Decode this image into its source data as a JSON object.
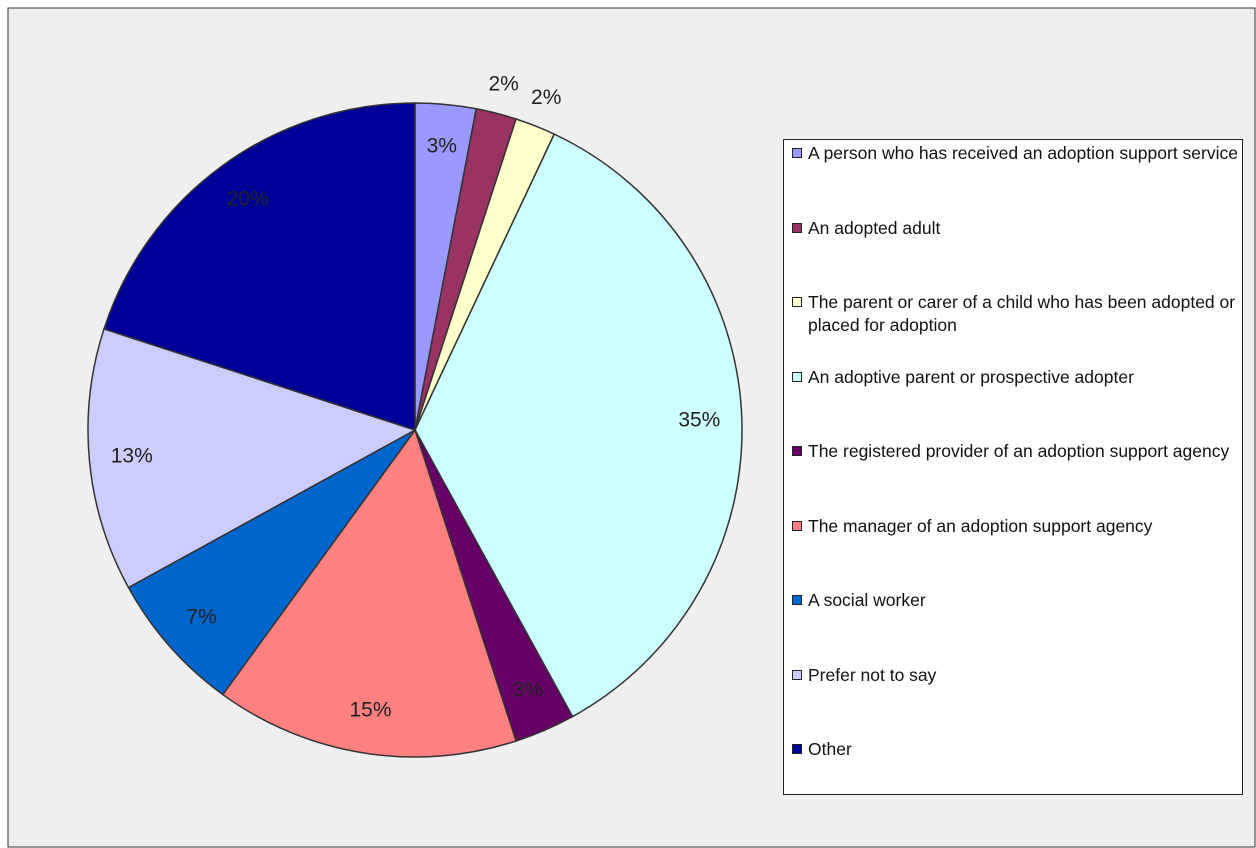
{
  "chart_data": {
    "type": "pie",
    "categories": [
      "A person who has received an adoption support service",
      "An adopted adult",
      "The parent or carer of a child who has been adopted or placed for adoption",
      "An adoptive parent or prospective adopter",
      "The registered provider of an adoption support agency",
      "The manager of an adoption support agency",
      "A social worker",
      "Prefer not to say",
      "Other"
    ],
    "values": [
      3,
      2,
      2,
      35,
      3,
      15,
      7,
      13,
      20
    ],
    "value_labels": [
      "3%",
      "2%",
      "2%",
      "35%",
      "3%",
      "15%",
      "7%",
      "13%",
      "20%"
    ],
    "colors": [
      "#9999ff",
      "#993366",
      "#ffffcc",
      "#ccffff",
      "#660066",
      "#ff8080",
      "#0066cc",
      "#ccccff",
      "#000099"
    ],
    "legend": "right"
  }
}
